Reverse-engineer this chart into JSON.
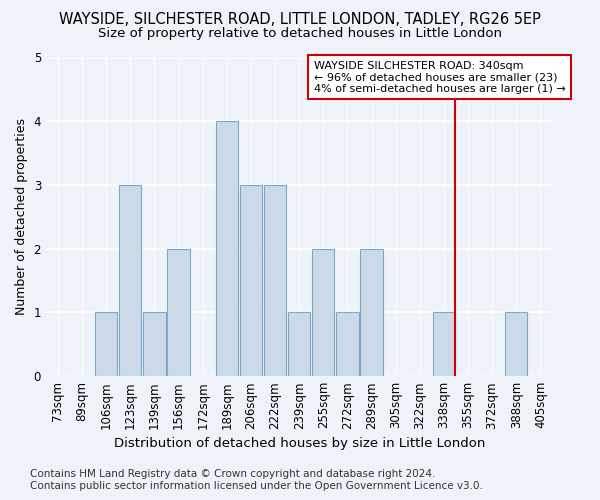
{
  "title": "WAYSIDE, SILCHESTER ROAD, LITTLE LONDON, TADLEY, RG26 5EP",
  "subtitle": "Size of property relative to detached houses in Little London",
  "xlabel": "Distribution of detached houses by size in Little London",
  "ylabel": "Number of detached properties",
  "footnote": "Contains HM Land Registry data © Crown copyright and database right 2024.\nContains public sector information licensed under the Open Government Licence v3.0.",
  "categories": [
    "73sqm",
    "89sqm",
    "106sqm",
    "123sqm",
    "139sqm",
    "156sqm",
    "172sqm",
    "189sqm",
    "206sqm",
    "222sqm",
    "239sqm",
    "255sqm",
    "272sqm",
    "289sqm",
    "305sqm",
    "322sqm",
    "338sqm",
    "355sqm",
    "372sqm",
    "388sqm",
    "405sqm"
  ],
  "values": [
    0,
    0,
    1,
    3,
    1,
    2,
    0,
    4,
    3,
    3,
    1,
    2,
    1,
    2,
    0,
    0,
    1,
    0,
    0,
    1,
    0
  ],
  "bar_color": "#ccd9e8",
  "bar_edge_color": "#7aaac8",
  "vline_x_index": 16.45,
  "vline_color": "#cc0000",
  "annotation_text": "WAYSIDE SILCHESTER ROAD: 340sqm\n← 96% of detached houses are smaller (23)\n4% of semi-detached houses are larger (1) →",
  "annotation_box_color": "#cc0000",
  "ylim": [
    0,
    5
  ],
  "yticks": [
    0,
    1,
    2,
    3,
    4,
    5
  ],
  "background_color": "#eef2f9",
  "grid_color": "#ffffff",
  "title_fontsize": 10.5,
  "subtitle_fontsize": 9.5,
  "xlabel_fontsize": 9.5,
  "ylabel_fontsize": 9,
  "tick_fontsize": 8.5,
  "footnote_fontsize": 7.5,
  "annotation_fontsize": 8
}
